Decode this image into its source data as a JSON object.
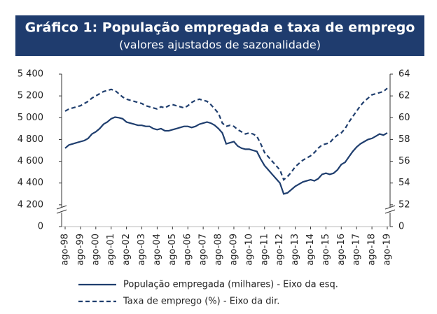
{
  "chart_data": {
    "type": "line",
    "title": "Gráfico 1: População empregada e taxa de emprego",
    "subtitle": "(valores ajustados de sazonalidade)",
    "categories": [
      "ago-98",
      null,
      null,
      null,
      "ago-99",
      null,
      null,
      null,
      "ago-00",
      null,
      null,
      null,
      "ago-01",
      null,
      null,
      null,
      "ago-02",
      null,
      null,
      null,
      "ago-03",
      null,
      null,
      null,
      "ago-04",
      null,
      null,
      null,
      "ago-05",
      null,
      null,
      null,
      "ago-06",
      null,
      null,
      null,
      "ago-07",
      null,
      null,
      null,
      "ago-08",
      null,
      null,
      null,
      "ago-09",
      null,
      null,
      null,
      "ago-10",
      null,
      null,
      null,
      "ago-11",
      null,
      null,
      null,
      "ago-12",
      null,
      null,
      null,
      "ago-13",
      null,
      null,
      null,
      "ago-14",
      null,
      null,
      null,
      "ago-15",
      null,
      null,
      null,
      "ago-16",
      null,
      null,
      null,
      "ago-17",
      null,
      null,
      null,
      "ago-18",
      null,
      null,
      null,
      "ago-19"
    ],
    "series": [
      {
        "name": "População empregada (milhares) - Eixo da esq.",
        "color": "#1f3e6e",
        "style": "solid",
        "values": [
          4720,
          4750,
          4760,
          4770,
          4780,
          4790,
          4810,
          4850,
          4870,
          4900,
          4940,
          4960,
          4990,
          5005,
          5000,
          4990,
          4960,
          4950,
          4940,
          4930,
          4930,
          4920,
          4920,
          4900,
          4890,
          4900,
          4880,
          4880,
          4890,
          4900,
          4910,
          4920,
          4920,
          4910,
          4920,
          4940,
          4950,
          4960,
          4950,
          4930,
          4900,
          4860,
          4760,
          4770,
          4780,
          4740,
          4720,
          4710,
          4710,
          4700,
          4690,
          4620,
          4560,
          4520,
          4480,
          4440,
          4400,
          4300,
          4310,
          4340,
          4370,
          4390,
          4410,
          4420,
          4430,
          4420,
          4440,
          4480,
          4490,
          4480,
          4490,
          4520,
          4570,
          4590,
          4640,
          4690,
          4730,
          4760,
          4780,
          4800,
          4810,
          4830,
          4850,
          4840,
          4860
        ]
      },
      {
        "name": "Taxa de emprego (%) - Eixo da dir.",
        "color": "#1f3e6e",
        "style": "dashed",
        "axis": "y2",
        "values": [
          60.6,
          60.8,
          60.9,
          61.0,
          61.1,
          61.3,
          61.5,
          61.8,
          62.0,
          62.2,
          62.4,
          62.5,
          62.6,
          62.5,
          62.2,
          61.9,
          61.7,
          61.6,
          61.5,
          61.4,
          61.3,
          61.1,
          61.0,
          60.9,
          60.8,
          61.0,
          60.9,
          61.1,
          61.2,
          61.1,
          61.0,
          60.9,
          61.1,
          61.4,
          61.6,
          61.7,
          61.6,
          61.5,
          61.2,
          60.8,
          60.4,
          59.5,
          59.2,
          59.3,
          59.2,
          58.9,
          58.7,
          58.5,
          58.6,
          58.5,
          58.3,
          57.6,
          56.8,
          56.4,
          56.0,
          55.6,
          55.2,
          54.3,
          54.6,
          55.0,
          55.5,
          55.8,
          56.1,
          56.3,
          56.5,
          56.8,
          57.2,
          57.5,
          57.6,
          57.7,
          58.1,
          58.4,
          58.6,
          59.0,
          59.6,
          60.1,
          60.6,
          61.1,
          61.5,
          61.8,
          62.1,
          62.2,
          62.3,
          62.4,
          62.7
        ]
      }
    ],
    "ylim": [
      0,
      5400
    ],
    "yticks": [
      0,
      {
        "value": 4200,
        "label": "4 200"
      },
      {
        "value": 4400,
        "label": "4 400"
      },
      {
        "value": 4600,
        "label": "4 600"
      },
      {
        "value": 4800,
        "label": "4 800"
      },
      {
        "value": 5000,
        "label": "5 000"
      },
      {
        "value": 5200,
        "label": "5 200"
      },
      {
        "value": 5400,
        "label": "5 400"
      }
    ],
    "y2lim": [
      0,
      64
    ],
    "y2ticks": [
      0,
      52,
      54,
      56,
      58,
      60,
      62,
      64
    ],
    "axis_break": true,
    "grid": false,
    "legend": "bottom"
  }
}
